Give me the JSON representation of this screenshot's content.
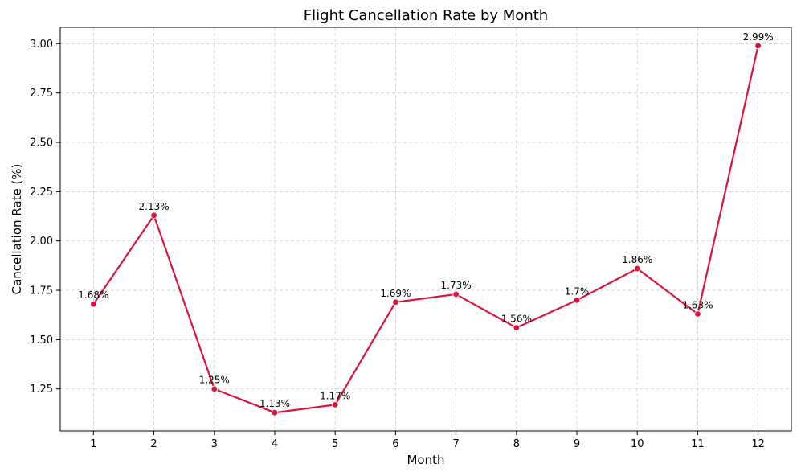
{
  "chart_data": {
    "type": "line",
    "title": "Flight Cancellation Rate by Month",
    "xlabel": "Month",
    "ylabel": "Cancellation Rate (%)",
    "x": [
      1,
      2,
      3,
      4,
      5,
      6,
      7,
      8,
      9,
      10,
      11,
      12
    ],
    "x_tick_labels": [
      "1",
      "2",
      "3",
      "4",
      "5",
      "6",
      "7",
      "8",
      "9",
      "10",
      "11",
      "12"
    ],
    "series": [
      {
        "values": [
          1.68,
          2.13,
          1.25,
          1.13,
          1.17,
          1.69,
          1.73,
          1.56,
          1.7,
          1.86,
          1.63,
          2.99
        ],
        "labels": [
          "1.68%",
          "2.13%",
          "1.25%",
          "1.13%",
          "1.17%",
          "1.69%",
          "1.73%",
          "1.56%",
          "1.7%",
          "1.86%",
          "1.63%",
          "2.99%"
        ],
        "color": "#dc143c"
      }
    ],
    "y_ticks": [
      1.25,
      1.5,
      1.75,
      2.0,
      2.25,
      2.5,
      2.75,
      3.0
    ],
    "y_tick_labels": [
      "1.25",
      "1.50",
      "1.75",
      "2.00",
      "2.25",
      "2.50",
      "2.75",
      "3.00"
    ],
    "xlim": [
      0.45,
      12.55
    ],
    "ylim": [
      1.037,
      3.083
    ],
    "grid": true,
    "grid_style": "dashed",
    "markers": "circle"
  }
}
